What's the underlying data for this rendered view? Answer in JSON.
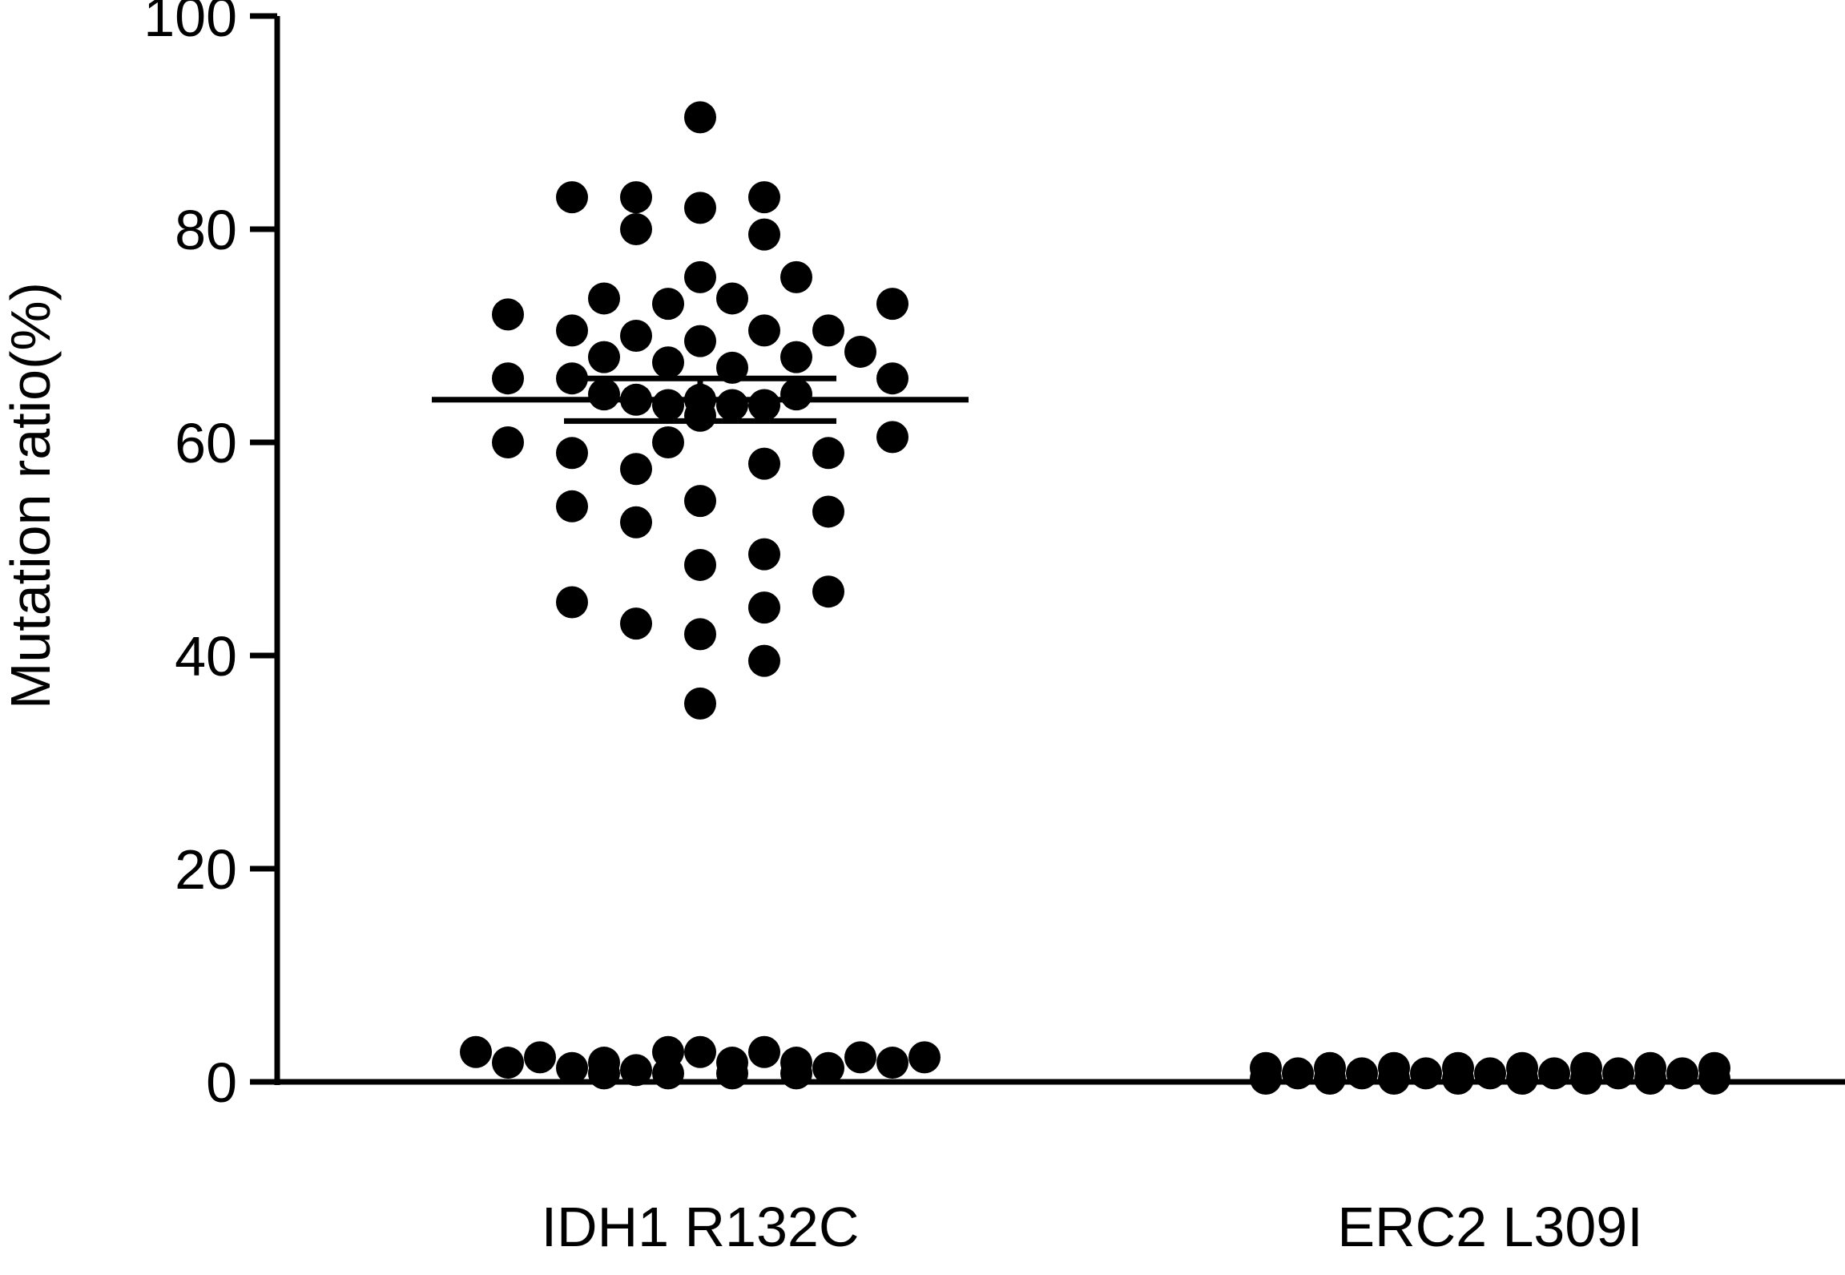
{
  "chart_data": {
    "type": "scatter",
    "title": "",
    "xlabel": "",
    "ylabel": "Mutation ratio(%)",
    "ylim": [
      0,
      100
    ],
    "yticks": [
      0,
      20,
      40,
      60,
      80,
      100
    ],
    "categories": [
      "IDH1 R132C",
      "ERC2 L309I"
    ],
    "grid": false,
    "colors": {
      "axis": "#000000",
      "points": "#000000"
    },
    "series": [
      {
        "category": "IDH1 R132C",
        "mean": 64,
        "sem": [
          62,
          66
        ],
        "points": [
          {
            "offset": 0,
            "value": 90.5
          },
          {
            "offset": -4,
            "value": 83
          },
          {
            "offset": -2,
            "value": 83
          },
          {
            "offset": 0,
            "value": 82
          },
          {
            "offset": 2,
            "value": 83
          },
          {
            "offset": -2,
            "value": 80
          },
          {
            "offset": 2,
            "value": 79.5
          },
          {
            "offset": 0,
            "value": 75.5
          },
          {
            "offset": 3,
            "value": 75.5
          },
          {
            "offset": -3,
            "value": 73.5
          },
          {
            "offset": 1,
            "value": 73.5
          },
          {
            "offset": -1,
            "value": 73
          },
          {
            "offset": 6,
            "value": 73
          },
          {
            "offset": -6,
            "value": 72
          },
          {
            "offset": -4,
            "value": 70.5
          },
          {
            "offset": -2,
            "value": 70
          },
          {
            "offset": 0,
            "value": 69.5
          },
          {
            "offset": 2,
            "value": 70.5
          },
          {
            "offset": 4,
            "value": 70.5
          },
          {
            "offset": 5,
            "value": 68.5
          },
          {
            "offset": -3,
            "value": 68
          },
          {
            "offset": 3,
            "value": 68
          },
          {
            "offset": -1,
            "value": 67.5
          },
          {
            "offset": 1,
            "value": 67
          },
          {
            "offset": -6,
            "value": 66
          },
          {
            "offset": -4,
            "value": 66
          },
          {
            "offset": 6,
            "value": 66
          },
          {
            "offset": -3,
            "value": 64.5
          },
          {
            "offset": 3,
            "value": 64.5
          },
          {
            "offset": -2,
            "value": 64
          },
          {
            "offset": -1,
            "value": 63.5
          },
          {
            "offset": 0,
            "value": 64
          },
          {
            "offset": 1,
            "value": 63.5
          },
          {
            "offset": 2,
            "value": 63.5
          },
          {
            "offset": 0,
            "value": 62.5
          },
          {
            "offset": -1,
            "value": 60
          },
          {
            "offset": -6,
            "value": 60
          },
          {
            "offset": 6,
            "value": 60.5
          },
          {
            "offset": -4,
            "value": 59
          },
          {
            "offset": 4,
            "value": 59
          },
          {
            "offset": 2,
            "value": 58
          },
          {
            "offset": -2,
            "value": 57.5
          },
          {
            "offset": 0,
            "value": 54.5
          },
          {
            "offset": -4,
            "value": 54
          },
          {
            "offset": 4,
            "value": 53.5
          },
          {
            "offset": -2,
            "value": 52.5
          },
          {
            "offset": 2,
            "value": 49.5
          },
          {
            "offset": 0,
            "value": 48.5
          },
          {
            "offset": 4,
            "value": 46
          },
          {
            "offset": -4,
            "value": 45
          },
          {
            "offset": 2,
            "value": 44.5
          },
          {
            "offset": -2,
            "value": 43
          },
          {
            "offset": 0,
            "value": 42
          },
          {
            "offset": 2,
            "value": 39.5
          },
          {
            "offset": 0,
            "value": 35.5
          },
          {
            "offset": -7,
            "value": 2.5
          },
          {
            "offset": -6,
            "value": 1.5
          },
          {
            "offset": -5,
            "value": 2
          },
          {
            "offset": -4,
            "value": 1
          },
          {
            "offset": -3,
            "value": 1.5
          },
          {
            "offset": -2,
            "value": 0.8
          },
          {
            "offset": -1,
            "value": 2.5
          },
          {
            "offset": 0,
            "value": 2.5
          },
          {
            "offset": 1,
            "value": 1.5
          },
          {
            "offset": 2,
            "value": 2.5
          },
          {
            "offset": 3,
            "value": 1.5
          },
          {
            "offset": 4,
            "value": 1
          },
          {
            "offset": 5,
            "value": 2
          },
          {
            "offset": 6,
            "value": 1.5
          },
          {
            "offset": 7,
            "value": 2
          },
          {
            "offset": -3,
            "value": 0.5
          },
          {
            "offset": -1,
            "value": 0.5
          },
          {
            "offset": 1,
            "value": 0.5
          },
          {
            "offset": 3,
            "value": 0.5
          }
        ]
      },
      {
        "category": "ERC2 L309I",
        "mean": 0,
        "sem": [
          0,
          0
        ],
        "points": [
          {
            "offset": -7,
            "value": 1
          },
          {
            "offset": -6,
            "value": 0.5
          },
          {
            "offset": -5,
            "value": 1
          },
          {
            "offset": -4,
            "value": 0.5
          },
          {
            "offset": -3,
            "value": 1
          },
          {
            "offset": -2,
            "value": 0.5
          },
          {
            "offset": -1,
            "value": 1
          },
          {
            "offset": 0,
            "value": 0.5
          },
          {
            "offset": 1,
            "value": 1
          },
          {
            "offset": 2,
            "value": 0.5
          },
          {
            "offset": 3,
            "value": 1
          },
          {
            "offset": 4,
            "value": 0.5
          },
          {
            "offset": 5,
            "value": 1
          },
          {
            "offset": 6,
            "value": 0.5
          },
          {
            "offset": 7,
            "value": 1
          },
          {
            "offset": -7,
            "value": 0
          },
          {
            "offset": -5,
            "value": 0
          },
          {
            "offset": -3,
            "value": 0
          },
          {
            "offset": -1,
            "value": 0
          },
          {
            "offset": 1,
            "value": 0
          },
          {
            "offset": 3,
            "value": 0
          },
          {
            "offset": 5,
            "value": 0
          },
          {
            "offset": 7,
            "value": 0
          }
        ]
      }
    ]
  }
}
